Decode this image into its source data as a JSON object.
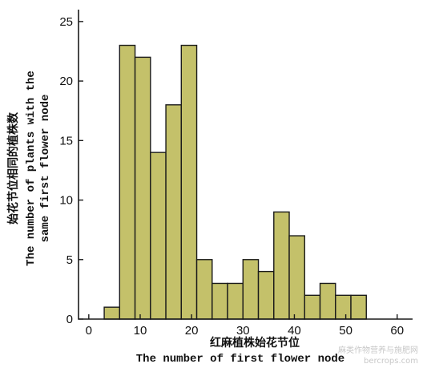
{
  "chart_data": {
    "type": "bar",
    "bin_width": 3,
    "bins": [
      {
        "start": 3,
        "end": 6,
        "count": 1
      },
      {
        "start": 6,
        "end": 9,
        "count": 23
      },
      {
        "start": 9,
        "end": 12,
        "count": 22
      },
      {
        "start": 12,
        "end": 15,
        "count": 14
      },
      {
        "start": 15,
        "end": 18,
        "count": 18
      },
      {
        "start": 18,
        "end": 21,
        "count": 23
      },
      {
        "start": 21,
        "end": 24,
        "count": 5
      },
      {
        "start": 24,
        "end": 27,
        "count": 3
      },
      {
        "start": 27,
        "end": 30,
        "count": 3
      },
      {
        "start": 30,
        "end": 33,
        "count": 5
      },
      {
        "start": 33,
        "end": 36,
        "count": 4
      },
      {
        "start": 36,
        "end": 39,
        "count": 9
      },
      {
        "start": 39,
        "end": 42,
        "count": 7
      },
      {
        "start": 42,
        "end": 45,
        "count": 2
      },
      {
        "start": 45,
        "end": 48,
        "count": 3
      },
      {
        "start": 48,
        "end": 51,
        "count": 2
      },
      {
        "start": 51,
        "end": 54,
        "count": 2
      }
    ],
    "xlim": [
      -2,
      63
    ],
    "ylim": [
      0,
      26
    ],
    "x_ticks": [
      "0",
      "10",
      "20",
      "30",
      "40",
      "50",
      "60"
    ],
    "y_ticks": [
      "0",
      "5",
      "10",
      "15",
      "20",
      "25"
    ],
    "xlabel_cn": "红麻植株始花节位",
    "xlabel_en": "The number of first flower node",
    "ylabel_cn": "始花节位相同的植株数",
    "ylabel_en_line1": "The number of plants with the",
    "ylabel_en_line2": "same first flower node"
  },
  "watermark": {
    "line1": "麻类作物营养与施肥网",
    "line2": "bercrops.com"
  }
}
